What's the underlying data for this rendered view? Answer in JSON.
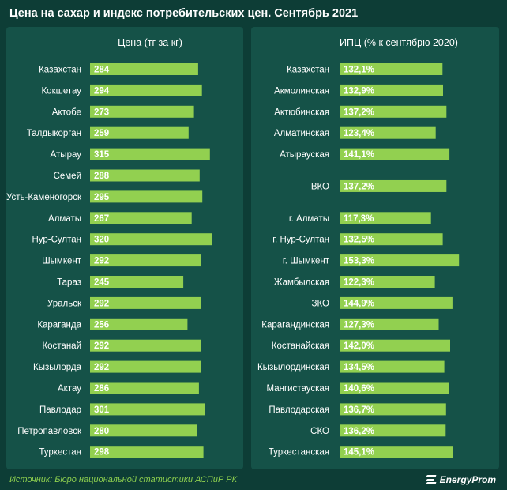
{
  "title": "Цена на сахар и индекс потребительских цен. Сентябрь 2021",
  "source": "Источник: Бюро национальной статистики АСПиР РК",
  "brand": "EnergyProm",
  "colors": {
    "background": "#0d3d36",
    "panel": "#155248",
    "bar": "#92d050",
    "source_text": "#8fd14f",
    "label_text": "#ffffff"
  },
  "chart_data": [
    {
      "type": "bar",
      "orientation": "horizontal",
      "title": "Цена (тг за кг)",
      "categories": [
        "Казахстан",
        "Кокшетау",
        "Актобе",
        "Талдыкорган",
        "Атырау",
        "Семей",
        "Усть-Каменогорск",
        "Алматы",
        "Нур-Султан",
        "Шымкент",
        "Тараз",
        "Уральск",
        "Караганда",
        "Костанай",
        "Кызылорда",
        "Актау",
        "Павлодар",
        "Петропавловск",
        "Туркестан"
      ],
      "values": [
        284,
        294,
        273,
        259,
        315,
        288,
        295,
        267,
        320,
        292,
        245,
        292,
        256,
        292,
        292,
        286,
        301,
        280,
        298
      ],
      "value_labels": [
        "284",
        "294",
        "273",
        "259",
        "315",
        "288",
        "295",
        "267",
        "320",
        "292",
        "245",
        "292",
        "256",
        "292",
        "292",
        "286",
        "301",
        "280",
        "298"
      ],
      "grid": false,
      "legend": "none"
    },
    {
      "type": "bar",
      "orientation": "horizontal",
      "title": "ИПЦ (% к сентябрю 2020)",
      "categories": [
        "Казахстан",
        "Акмолинская",
        "Актюбинская",
        "Алматинская",
        "Атырауская",
        "ВКО",
        "г. Алматы",
        "г. Нур-Султан",
        "г. Шымкент",
        "Жамбылская",
        "ЗКО",
        "Карагандинская",
        "Костанайская",
        "Кызылординская",
        "Мангистауская",
        "Павлодарская",
        "СКО",
        "Туркестанская"
      ],
      "values": [
        132.1,
        132.9,
        137.2,
        123.4,
        141.1,
        137.2,
        117.3,
        132.5,
        153.3,
        122.3,
        144.9,
        127.3,
        142.0,
        134.5,
        140.6,
        136.7,
        136.2,
        145.1
      ],
      "value_labels": [
        "132,1%",
        "132,9%",
        "137,2%",
        "123,4%",
        "141,1%",
        "137,2%",
        "117,3%",
        "132,5%",
        "153,3%",
        "122,3%",
        "144,9%",
        "127,3%",
        "142,0%",
        "134,5%",
        "140,6%",
        "136,7%",
        "136,2%",
        "145,1%"
      ],
      "grid": false,
      "legend": "none"
    }
  ]
}
